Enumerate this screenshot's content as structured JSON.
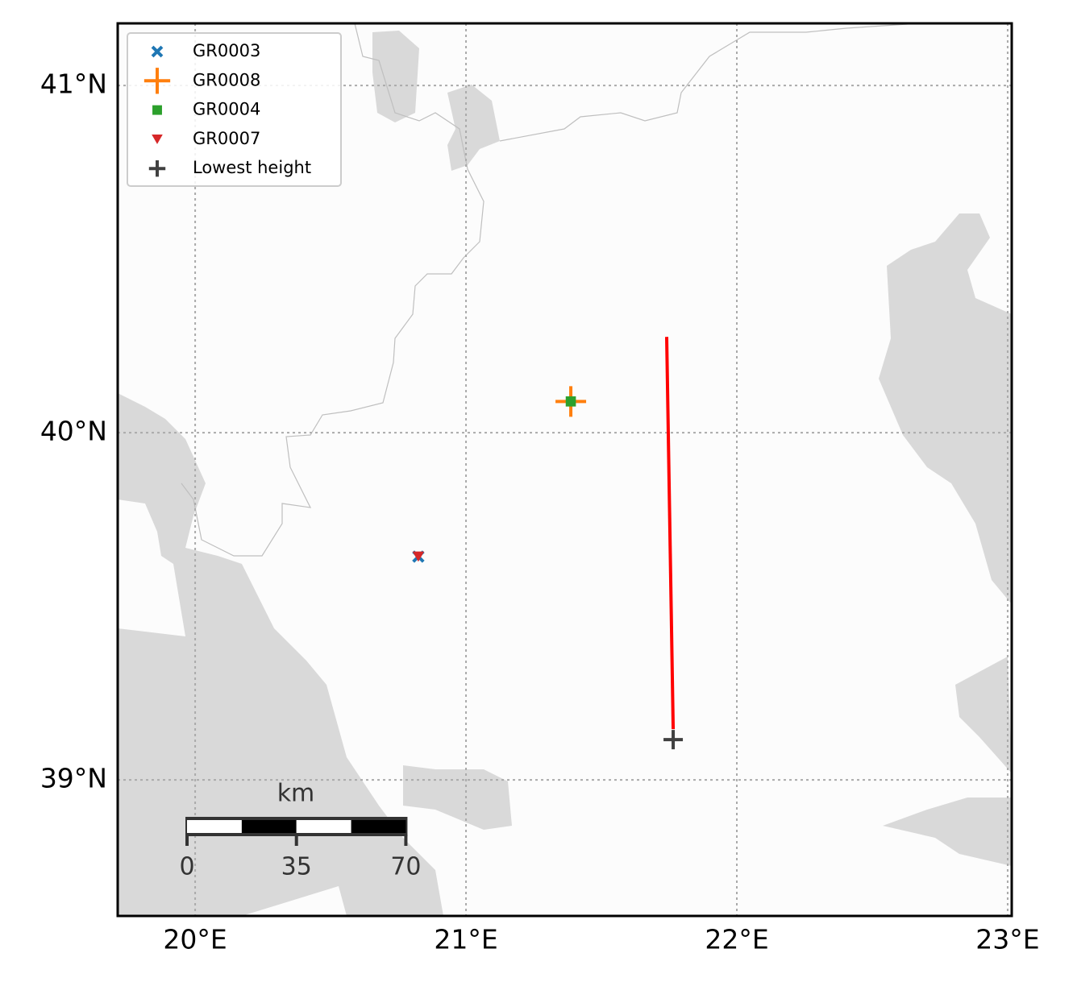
{
  "chart_data": {
    "type": "map",
    "xlim": [
      19.714,
      23.015
    ],
    "ylim": [
      38.608,
      41.179
    ],
    "xticks": [
      {
        "value": 20,
        "label": "20°E"
      },
      {
        "value": 21,
        "label": "21°E"
      },
      {
        "value": 22,
        "label": "22°E"
      },
      {
        "value": 23,
        "label": "23°E"
      }
    ],
    "yticks": [
      {
        "value": 39,
        "label": "39°N"
      },
      {
        "value": 40,
        "label": "40°N"
      },
      {
        "value": 41,
        "label": "41°N"
      }
    ],
    "grid": true,
    "legend": "upper left",
    "series": [
      {
        "name": "GR0003",
        "color": "#1f77b4",
        "marker": "x",
        "x": [
          20.824
        ],
        "values": [
          39.643
        ]
      },
      {
        "name": "GR0008",
        "color": "#ff7f0e",
        "marker": "plus-large",
        "x": [
          21.387
        ],
        "values": [
          40.09
        ]
      },
      {
        "name": "GR0004",
        "color": "#2ca02c",
        "marker": "square",
        "x": [
          21.387
        ],
        "values": [
          40.09
        ]
      },
      {
        "name": "GR0007",
        "color": "#d62728",
        "marker": "triangle-down",
        "x": [
          20.824
        ],
        "values": [
          39.643
        ]
      },
      {
        "name": "Lowest height",
        "color": "#404040",
        "marker": "plus",
        "x": [
          21.765
        ],
        "values": [
          39.116
        ]
      }
    ],
    "track": {
      "color": "#ff0000",
      "x": [
        21.741,
        21.765
      ],
      "values": [
        40.276,
        39.146
      ]
    },
    "scale_bar": {
      "unit": "km",
      "ticks": [
        0,
        35,
        70
      ]
    }
  }
}
